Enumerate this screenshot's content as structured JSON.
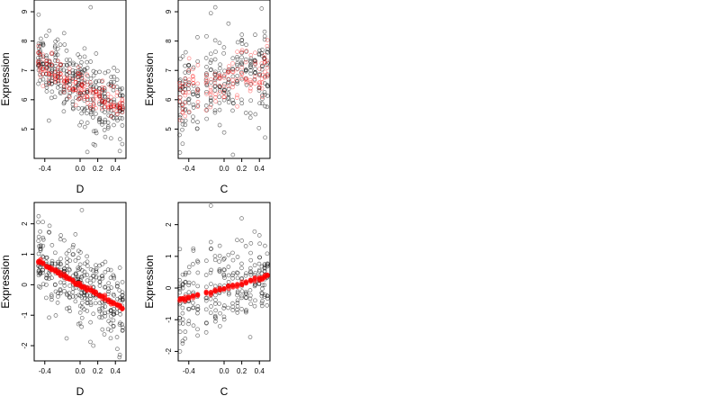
{
  "chart_data": [
    {
      "type": "scatter",
      "xlabel": "D",
      "ylabel": "Expression",
      "xlim": [
        -0.52,
        0.52
      ],
      "ylim": [
        4.0,
        9.4
      ],
      "xticks": [
        {
          "v": -0.4,
          "label": "-0.4"
        },
        {
          "v": 0.0,
          "label": "0.0"
        },
        {
          "v": 0.2,
          "label": "0.2"
        },
        {
          "v": 0.4,
          "label": "0.4"
        }
      ],
      "yticks": [
        {
          "v": 5,
          "label": "5"
        },
        {
          "v": 6,
          "label": "6"
        },
        {
          "v": 7,
          "label": "7"
        },
        {
          "v": 8,
          "label": "8"
        },
        {
          "v": 9,
          "label": "9"
        }
      ],
      "x_groups": [
        -0.47,
        -0.45,
        -0.42,
        -0.38,
        -0.35,
        -0.32,
        -0.28,
        -0.25,
        -0.22,
        -0.18,
        -0.15,
        -0.12,
        -0.08,
        -0.05,
        -0.02,
        0.0,
        0.02,
        0.05,
        0.08,
        0.12,
        0.15,
        0.18,
        0.22,
        0.25,
        0.28,
        0.32,
        0.35,
        0.38,
        0.42,
        0.45,
        0.48
      ],
      "trend": {
        "intercept": 6.45,
        "slope": -1.75
      },
      "spread": 0.62,
      "red_spread": 0.26,
      "outliers": [
        {
          "x": 0.12,
          "y": 9.15
        },
        {
          "x": 0.45,
          "y": 4.25
        },
        {
          "x": 0.17,
          "y": 4.45
        },
        {
          "x": -0.47,
          "y": 8.9
        }
      ],
      "series": [
        {
          "name": "",
          "color": "#000000",
          "fill": false,
          "opacity": 0.55
        },
        {
          "name": "",
          "color": "#ff0000",
          "fill": false,
          "opacity": 0.45
        }
      ]
    },
    {
      "type": "scatter",
      "xlabel": "C",
      "ylabel": "Expression",
      "xlim": [
        -0.52,
        0.52
      ],
      "ylim": [
        4.0,
        9.4
      ],
      "xticks": [
        {
          "v": -0.4,
          "label": "-0.4"
        },
        {
          "v": 0.0,
          "label": "0.0"
        },
        {
          "v": 0.2,
          "label": "0.2"
        },
        {
          "v": 0.4,
          "label": "0.4"
        }
      ],
      "yticks": [
        {
          "v": 5,
          "label": "5"
        },
        {
          "v": 6,
          "label": "6"
        },
        {
          "v": 7,
          "label": "7"
        },
        {
          "v": 8,
          "label": "8"
        },
        {
          "v": 9,
          "label": "9"
        }
      ],
      "x_groups": [
        -0.5,
        -0.47,
        -0.44,
        -0.4,
        -0.35,
        -0.3,
        -0.2,
        -0.15,
        -0.1,
        -0.05,
        0.0,
        0.05,
        0.1,
        0.15,
        0.2,
        0.25,
        0.3,
        0.35,
        0.4,
        0.43,
        0.46,
        0.49
      ],
      "trend": {
        "intercept": 6.6,
        "slope": 0.75
      },
      "spread": 0.72,
      "red_spread": 0.45,
      "outliers": [
        {
          "x": -0.1,
          "y": 9.15
        },
        {
          "x": -0.15,
          "y": 8.95
        },
        {
          "x": -0.5,
          "y": 4.2
        },
        {
          "x": -0.47,
          "y": 4.5
        }
      ],
      "series": [
        {
          "name": "",
          "color": "#000000",
          "fill": false,
          "opacity": 0.55
        },
        {
          "name": "",
          "color": "#ff0000",
          "fill": false,
          "opacity": 0.45
        }
      ]
    },
    {
      "type": "scatter",
      "xlabel": "D",
      "ylabel": "Expression",
      "xlim": [
        -0.52,
        0.52
      ],
      "ylim": [
        -2.5,
        2.7
      ],
      "xticks": [
        {
          "v": -0.4,
          "label": "-0.4"
        },
        {
          "v": 0.0,
          "label": "0.0"
        },
        {
          "v": 0.2,
          "label": "0.2"
        },
        {
          "v": 0.4,
          "label": "0.4"
        }
      ],
      "yticks": [
        {
          "v": -2,
          "label": "-2"
        },
        {
          "v": -1,
          "label": "-1"
        },
        {
          "v": 0,
          "label": "0"
        },
        {
          "v": 1,
          "label": "1"
        },
        {
          "v": 2,
          "label": "2"
        }
      ],
      "x_groups": [
        -0.47,
        -0.45,
        -0.42,
        -0.38,
        -0.35,
        -0.32,
        -0.28,
        -0.25,
        -0.22,
        -0.18,
        -0.15,
        -0.12,
        -0.08,
        -0.05,
        -0.02,
        0.0,
        0.02,
        0.05,
        0.08,
        0.12,
        0.15,
        0.18,
        0.22,
        0.25,
        0.28,
        0.32,
        0.35,
        0.38,
        0.42,
        0.45,
        0.48
      ],
      "trend": {
        "intercept": 0.0,
        "slope": -1.6
      },
      "spread": 0.62,
      "red_spread": 0.0,
      "outliers": [
        {
          "x": 0.02,
          "y": 2.45
        },
        {
          "x": 0.45,
          "y": -2.3
        },
        {
          "x": 0.15,
          "y": -2.0
        },
        {
          "x": -0.47,
          "y": 2.25
        }
      ],
      "series": [
        {
          "name": "",
          "color": "#000000",
          "fill": false,
          "opacity": 0.55
        },
        {
          "name": "",
          "color": "#ff0000",
          "fill": true,
          "opacity": 0.55
        }
      ]
    },
    {
      "type": "scatter",
      "xlabel": "C",
      "ylabel": "Expression",
      "xlim": [
        -0.52,
        0.52
      ],
      "ylim": [
        -2.3,
        2.7
      ],
      "xticks": [
        {
          "v": -0.4,
          "label": "-0.4"
        },
        {
          "v": 0.0,
          "label": "0.0"
        },
        {
          "v": 0.2,
          "label": "0.2"
        },
        {
          "v": 0.4,
          "label": "0.4"
        }
      ],
      "yticks": [
        {
          "v": -2,
          "label": "-2"
        },
        {
          "v": -1,
          "label": "-1"
        },
        {
          "v": 0,
          "label": "0"
        },
        {
          "v": 1,
          "label": "1"
        },
        {
          "v": 2,
          "label": "2"
        }
      ],
      "x_groups": [
        -0.5,
        -0.47,
        -0.44,
        -0.4,
        -0.35,
        -0.3,
        -0.2,
        -0.15,
        -0.1,
        -0.05,
        0.0,
        0.05,
        0.1,
        0.15,
        0.2,
        0.25,
        0.3,
        0.35,
        0.4,
        0.43,
        0.46,
        0.49
      ],
      "trend": {
        "intercept": 0.0,
        "slope": 0.75
      },
      "spread": 0.62,
      "red_spread": 0.0,
      "outliers": [
        {
          "x": -0.15,
          "y": 2.6
        },
        {
          "x": -0.5,
          "y": -2.0
        },
        {
          "x": -0.47,
          "y": -1.75
        },
        {
          "x": -0.15,
          "y": 1.45
        }
      ],
      "series": [
        {
          "name": "",
          "color": "#000000",
          "fill": false,
          "opacity": 0.55
        },
        {
          "name": "",
          "color": "#ff0000",
          "fill": true,
          "opacity": 0.55
        }
      ]
    }
  ]
}
